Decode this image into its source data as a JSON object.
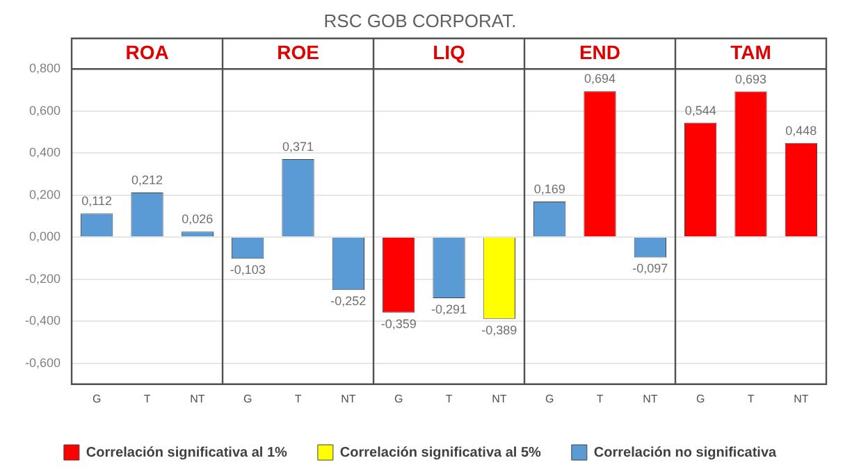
{
  "chart_data": {
    "type": "bar",
    "title": "RSC GOB CORPORAT.",
    "categories": [
      "G",
      "T",
      "NT",
      "G",
      "T",
      "NT",
      "G",
      "T",
      "NT",
      "G",
      "T",
      "NT",
      "G",
      "T",
      "NT"
    ],
    "series": [
      {
        "name": "Correlación significativa al 1%",
        "color": "#ff0000",
        "values": [
          null,
          null,
          null,
          null,
          null,
          null,
          -0.359,
          null,
          null,
          null,
          0.694,
          null,
          0.544,
          0.693,
          0.448
        ],
        "value_labels": [
          null,
          null,
          null,
          null,
          null,
          null,
          "-0,359",
          null,
          null,
          null,
          "0,694",
          null,
          "0,544",
          "0,693",
          "0,448"
        ]
      },
      {
        "name": "Correlación significativa al 5%",
        "color": "#ffff00",
        "values": [
          null,
          null,
          null,
          null,
          null,
          null,
          null,
          null,
          -0.389,
          null,
          null,
          null,
          null,
          null,
          null
        ],
        "value_labels": [
          null,
          null,
          null,
          null,
          null,
          null,
          null,
          null,
          "-0,389",
          null,
          null,
          null,
          null,
          null,
          null
        ]
      },
      {
        "name": "Correlación no significativa",
        "color": "#5b9bd5",
        "values": [
          0.112,
          0.212,
          0.026,
          -0.103,
          0.371,
          -0.252,
          null,
          -0.291,
          null,
          0.169,
          null,
          -0.097,
          null,
          null,
          null
        ],
        "value_labels": [
          "0,112",
          "0,212",
          "0,026",
          "-0,103",
          "0,371",
          "-0,252",
          null,
          "-0,291",
          null,
          "0,169",
          null,
          "-0,097",
          null,
          null,
          null
        ]
      }
    ],
    "stacked": true,
    "annotations": [
      "ROA",
      "ROE",
      "LIQ",
      "END",
      "TAM"
    ],
    "ylim": [
      -0.7,
      0.8
    ],
    "yticks": [
      {
        "value": -0.6,
        "label": "-0,600"
      },
      {
        "value": -0.4,
        "label": "-0,400"
      },
      {
        "value": -0.2,
        "label": "-0,200"
      },
      {
        "value": 0,
        "label": "0,000"
      },
      {
        "value": 0.2,
        "label": "0,200"
      },
      {
        "value": 0.4,
        "label": "0,400"
      },
      {
        "value": 0.6,
        "label": "0,600"
      },
      {
        "value": 0.8,
        "label": "0,800"
      }
    ],
    "grid": "y",
    "legend": "bottom"
  }
}
